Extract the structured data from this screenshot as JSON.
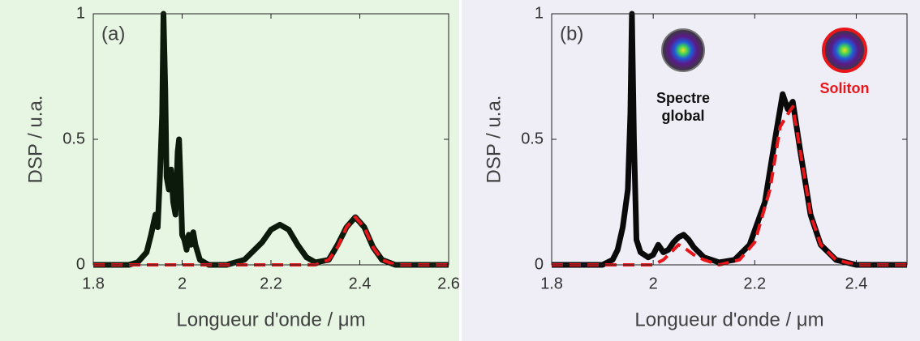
{
  "chart_data": [
    {
      "type": "line",
      "panel_label": "(a)",
      "xlabel": "Longueur d'onde / μm",
      "ylabel": "DSP / u.a.",
      "xlim": [
        1.8,
        2.6
      ],
      "ylim": [
        0,
        1
      ],
      "xticks": [
        1.8,
        2,
        2.2,
        2.4,
        2.6
      ],
      "yticks": [
        0,
        0.5,
        1
      ],
      "background": "#e7f6e3",
      "series": [
        {
          "color": "#0b1a0b",
          "style": "solid",
          "x": [
            1.8,
            1.88,
            1.9,
            1.92,
            1.93,
            1.94,
            1.945,
            1.95,
            1.955,
            1.958,
            1.962,
            1.965,
            1.97,
            1.975,
            1.98,
            1.985,
            1.99,
            1.993,
            1.997,
            2.0,
            2.005,
            2.01,
            2.015,
            2.02,
            2.025,
            2.03,
            2.04,
            2.06,
            2.1,
            2.14,
            2.18,
            2.2,
            2.22,
            2.24,
            2.26,
            2.28,
            2.3,
            2.33,
            2.35,
            2.37,
            2.39,
            2.41,
            2.43,
            2.45,
            2.48,
            2.6
          ],
          "y": [
            0,
            0,
            0.01,
            0.05,
            0.12,
            0.2,
            0.15,
            0.35,
            0.6,
            1.0,
            0.7,
            0.35,
            0.3,
            0.38,
            0.25,
            0.2,
            0.45,
            0.5,
            0.3,
            0.12,
            0.1,
            0.06,
            0.12,
            0.08,
            0.13,
            0.08,
            0.02,
            0,
            0,
            0.02,
            0.09,
            0.14,
            0.16,
            0.14,
            0.08,
            0.03,
            0.01,
            0.02,
            0.08,
            0.15,
            0.19,
            0.15,
            0.07,
            0.02,
            0,
            0
          ]
        },
        {
          "color": "#e8161b",
          "style": "dashed",
          "x": [
            1.8,
            2.3,
            2.33,
            2.35,
            2.37,
            2.39,
            2.41,
            2.43,
            2.45,
            2.48,
            2.6
          ],
          "y": [
            0,
            0,
            0.02,
            0.07,
            0.15,
            0.19,
            0.15,
            0.07,
            0.02,
            0,
            0
          ]
        }
      ]
    },
    {
      "type": "line",
      "panel_label": "(b)",
      "xlabel": "Longueur d'onde / μm",
      "ylabel": "DSP / u.a.",
      "xlim": [
        1.8,
        2.5
      ],
      "ylim": [
        0,
        1
      ],
      "xticks": [
        1.8,
        2,
        2.2,
        2.4
      ],
      "yticks": [
        0,
        0.5,
        1
      ],
      "background": "#efeef6",
      "annotations": [
        {
          "text_lines": [
            "Spectre",
            "global"
          ],
          "color": "#111111"
        },
        {
          "text_lines": [
            "Soliton"
          ],
          "color": "#e8161b"
        }
      ],
      "series": [
        {
          "color": "#0a0a0a",
          "style": "solid",
          "x": [
            1.8,
            1.9,
            1.92,
            1.93,
            1.94,
            1.95,
            1.955,
            1.958,
            1.962,
            1.967,
            1.975,
            1.99,
            2.0,
            2.01,
            2.02,
            2.03,
            2.04,
            2.05,
            2.06,
            2.07,
            2.08,
            2.1,
            2.13,
            2.16,
            2.19,
            2.22,
            2.24,
            2.255,
            2.265,
            2.275,
            2.29,
            2.31,
            2.33,
            2.36,
            2.4,
            2.5
          ],
          "y": [
            0,
            0,
            0.02,
            0.06,
            0.15,
            0.3,
            0.6,
            1.0,
            0.5,
            0.1,
            0.05,
            0.03,
            0.04,
            0.08,
            0.05,
            0.06,
            0.09,
            0.11,
            0.12,
            0.1,
            0.07,
            0.03,
            0.01,
            0.02,
            0.08,
            0.25,
            0.5,
            0.68,
            0.62,
            0.65,
            0.45,
            0.2,
            0.08,
            0.02,
            0,
            0
          ]
        },
        {
          "color": "#e8161b",
          "style": "dashed",
          "x": [
            1.8,
            2.0,
            2.02,
            2.04,
            2.05,
            2.06,
            2.08,
            2.1,
            2.13,
            2.17,
            2.2,
            2.23,
            2.25,
            2.265,
            2.275,
            2.29,
            2.31,
            2.33,
            2.36,
            2.4,
            2.5
          ],
          "y": [
            0,
            0,
            0.02,
            0.06,
            0.08,
            0.07,
            0.04,
            0.02,
            0,
            0.02,
            0.09,
            0.3,
            0.55,
            0.6,
            0.63,
            0.45,
            0.2,
            0.08,
            0.02,
            0,
            0
          ]
        }
      ]
    }
  ]
}
